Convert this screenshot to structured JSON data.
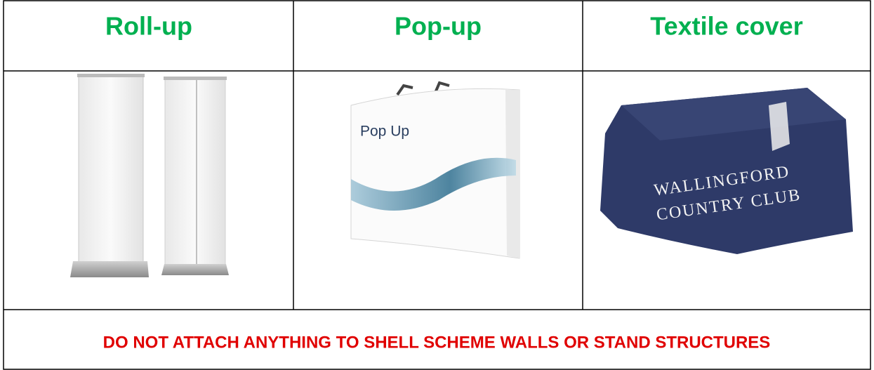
{
  "table": {
    "header": [
      "Roll-up",
      "Pop-up",
      "Textile cover"
    ],
    "images": {
      "pop_up_text": "Pop Up",
      "tablecloth_text": [
        "WALLINGFORD",
        "COUNTRY CLUB"
      ]
    },
    "footer": "DO NOT ATTACH ANYTHING TO SHELL SCHEME WALLS OR STAND STRUCTURES"
  }
}
